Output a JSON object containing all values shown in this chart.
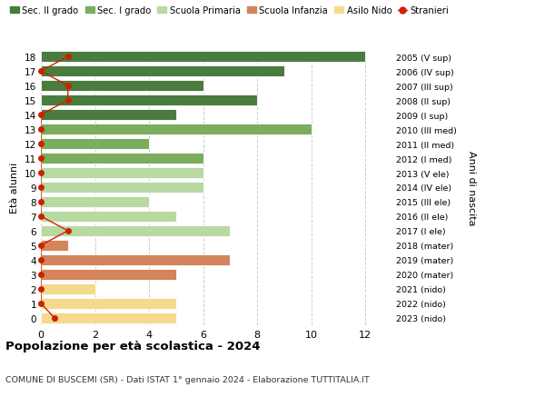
{
  "ages": [
    18,
    17,
    16,
    15,
    14,
    13,
    12,
    11,
    10,
    9,
    8,
    7,
    6,
    5,
    4,
    3,
    2,
    1,
    0
  ],
  "right_labels": [
    "2005 (V sup)",
    "2006 (IV sup)",
    "2007 (III sup)",
    "2008 (II sup)",
    "2009 (I sup)",
    "2010 (III med)",
    "2011 (II med)",
    "2012 (I med)",
    "2013 (V ele)",
    "2014 (IV ele)",
    "2015 (III ele)",
    "2016 (II ele)",
    "2017 (I ele)",
    "2018 (mater)",
    "2019 (mater)",
    "2020 (mater)",
    "2021 (nido)",
    "2022 (nido)",
    "2023 (nido)"
  ],
  "bar_values": [
    12,
    9,
    6,
    8,
    5,
    10,
    4,
    6,
    6,
    6,
    4,
    5,
    7,
    1,
    7,
    5,
    2,
    5,
    5
  ],
  "bar_colors": [
    "#4a7c3f",
    "#4a7c3f",
    "#4a7c3f",
    "#4a7c3f",
    "#4a7c3f",
    "#7aad5e",
    "#7aad5e",
    "#7aad5e",
    "#b8d9a0",
    "#b8d9a0",
    "#b8d9a0",
    "#b8d9a0",
    "#b8d9a0",
    "#d4845a",
    "#d4845a",
    "#d4845a",
    "#f5d98c",
    "#f5d98c",
    "#f5d98c"
  ],
  "stranieri_x": [
    1,
    0,
    1,
    1,
    0,
    0,
    0,
    0,
    0,
    0,
    0,
    0,
    1,
    0,
    0,
    0,
    0,
    0,
    0.5
  ],
  "legend_labels": [
    "Sec. II grado",
    "Sec. I grado",
    "Scuola Primaria",
    "Scuola Infanzia",
    "Asilo Nido",
    "Stranieri"
  ],
  "legend_colors": [
    "#4a7c3f",
    "#7aad5e",
    "#b8d9a0",
    "#d4845a",
    "#f5d98c",
    "#cc2200"
  ],
  "title": "Popolazione per età scolastica - 2024",
  "subtitle": "COMUNE DI BUSCEMI (SR) - Dati ISTAT 1° gennaio 2024 - Elaborazione TUTTITALIA.IT",
  "ylabel": "Età alunni",
  "ylabel2": "Anni di nascita",
  "xlim": [
    0,
    13
  ],
  "xticks": [
    0,
    2,
    4,
    6,
    8,
    10,
    12
  ],
  "background_color": "#ffffff",
  "grid_color": "#cccccc",
  "bar_height": 0.78
}
